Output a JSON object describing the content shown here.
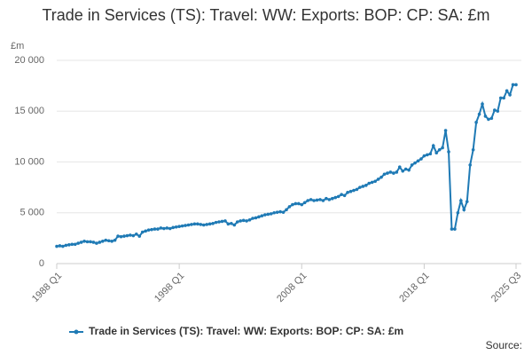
{
  "chart_data": {
    "type": "line",
    "title": "Trade in Services (TS): Travel: WW: Exports: BOP: CP: SA: £m",
    "y_label": "£m",
    "source": "Source:",
    "categories": [
      "1988 Q1",
      null,
      null,
      null,
      null,
      null,
      null,
      null,
      null,
      null,
      null,
      null,
      null,
      null,
      null,
      null,
      null,
      null,
      null,
      null,
      null,
      null,
      null,
      null,
      null,
      null,
      null,
      null,
      null,
      null,
      null,
      null,
      null,
      null,
      null,
      null,
      null,
      null,
      null,
      null,
      "1998 Q1",
      null,
      null,
      null,
      null,
      null,
      null,
      null,
      null,
      null,
      null,
      null,
      null,
      null,
      null,
      null,
      null,
      null,
      null,
      null,
      null,
      null,
      null,
      null,
      null,
      null,
      null,
      null,
      null,
      null,
      null,
      null,
      null,
      null,
      null,
      null,
      null,
      null,
      null,
      null,
      "2008 Q1",
      null,
      null,
      null,
      null,
      null,
      null,
      null,
      null,
      null,
      null,
      null,
      null,
      null,
      null,
      null,
      null,
      null,
      null,
      null,
      null,
      null,
      null,
      null,
      null,
      null,
      null,
      null,
      null,
      null,
      null,
      null,
      null,
      null,
      null,
      null,
      null,
      null,
      null,
      null,
      "2018 Q1",
      null,
      null,
      null,
      null,
      null,
      null,
      null,
      null,
      null,
      null,
      null,
      null,
      null,
      null,
      null,
      null,
      null,
      null,
      null,
      null,
      null,
      null,
      null,
      null,
      null,
      null,
      null,
      null,
      null,
      "2025 Q3"
    ],
    "series": [
      {
        "name": "Trade in Services (TS): Travel: WW: Exports: BOP: CP: SA: £m",
        "color": "#1f7ab5",
        "values": [
          1700,
          1750,
          1700,
          1800,
          1850,
          1900,
          1900,
          2000,
          2100,
          2200,
          2150,
          2150,
          2100,
          2000,
          2100,
          2200,
          2300,
          2250,
          2200,
          2300,
          2700,
          2650,
          2700,
          2750,
          2800,
          2750,
          2900,
          2700,
          3100,
          3200,
          3300,
          3350,
          3400,
          3400,
          3500,
          3450,
          3500,
          3450,
          3550,
          3600,
          3650,
          3700,
          3750,
          3800,
          3850,
          3900,
          3900,
          3850,
          3800,
          3850,
          3900,
          3950,
          4050,
          4100,
          4150,
          4200,
          3900,
          3950,
          3800,
          4100,
          4200,
          4250,
          4200,
          4300,
          4450,
          4500,
          4600,
          4700,
          4800,
          4850,
          4900,
          5000,
          5050,
          5100,
          5050,
          5300,
          5600,
          5800,
          5900,
          5900,
          5800,
          6000,
          6200,
          6300,
          6200,
          6250,
          6300,
          6200,
          6400,
          6300,
          6400,
          6500,
          6600,
          6800,
          6700,
          7000,
          7100,
          7200,
          7300,
          7500,
          7600,
          7700,
          7900,
          8000,
          8100,
          8300,
          8500,
          8800,
          8900,
          9000,
          8900,
          9000,
          9500,
          9100,
          9300,
          9200,
          9700,
          9900,
          10100,
          10300,
          10600,
          10700,
          10800,
          11600,
          10900,
          11200,
          11400,
          13100,
          11000,
          3400,
          3400,
          5000,
          6200,
          5300,
          6100,
          9700,
          11200,
          13900,
          14700,
          15700,
          14500,
          14200,
          14300,
          15100,
          15000,
          16300,
          16300,
          17000,
          16600,
          17600,
          17600
        ]
      }
    ],
    "ylim": [
      0,
      20000
    ],
    "yticks": [
      0,
      {
        "value": 5000,
        "label": "5 000"
      },
      {
        "value": 10000,
        "label": "10 000"
      },
      {
        "value": 15000,
        "label": "15 000"
      },
      {
        "value": 20000,
        "label": "20 000"
      }
    ],
    "grid": true,
    "legend": "bottom"
  }
}
